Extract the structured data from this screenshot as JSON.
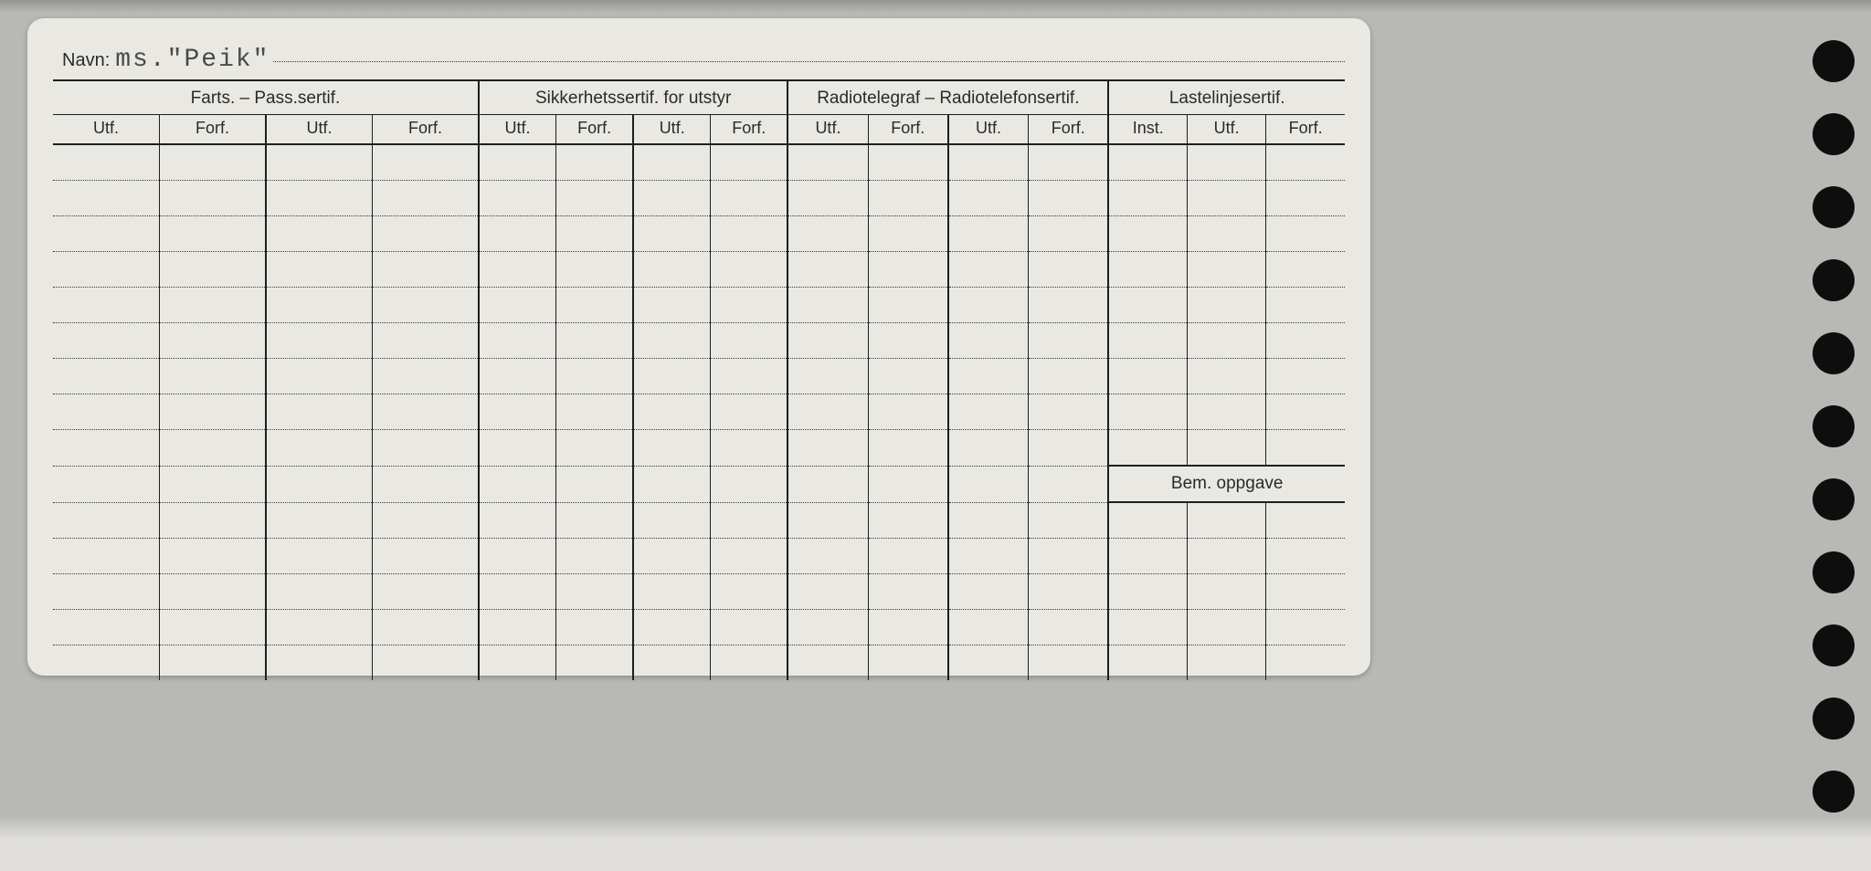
{
  "name_label": "Navn:",
  "name_value": "ms.\"Peik\"",
  "groups": {
    "g1": {
      "title": "Farts. – Pass.sertif.",
      "cols": [
        "Utf.",
        "Forf.",
        "Utf.",
        "Forf."
      ]
    },
    "g2": {
      "title": "Sikkerhetssertif. for utstyr",
      "cols": [
        "Utf.",
        "Forf.",
        "Utf.",
        "Forf."
      ]
    },
    "g3": {
      "title": "Radiotelegraf – Radiotelefonsertif.",
      "cols": [
        "Utf.",
        "Forf.",
        "Utf.",
        "Forf."
      ]
    },
    "g4": {
      "title": "Lastelinjesertif.",
      "cols": [
        "Inst.",
        "Utf.",
        "Forf."
      ]
    }
  },
  "bem_label": "Bem. oppgave",
  "body_rows_upper": 9,
  "body_rows_lower": 5,
  "colors": {
    "page_bg": "#b8b8b4",
    "card_bg": "#e9e8e3",
    "ink": "#1e1e1c",
    "dot": "#3a3a38",
    "type": "#4a4a48"
  }
}
